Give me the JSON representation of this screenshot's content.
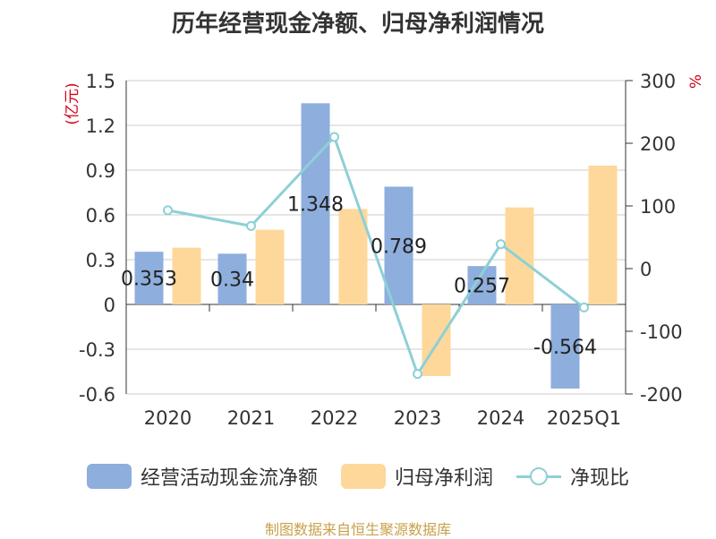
{
  "chart_data": {
    "type": "bar",
    "title": "历年经营现金净额、归母净利润情况",
    "categories": [
      "2020",
      "2021",
      "2022",
      "2023",
      "2024",
      "2025Q1"
    ],
    "series": [
      {
        "name": "经营活动现金流净额",
        "type": "bar",
        "axis": "left",
        "color": "#8eaedd",
        "values": [
          0.353,
          0.34,
          1.348,
          0.789,
          0.257,
          -0.564
        ],
        "labels": [
          "0.353",
          "0.34",
          "1.348",
          "0.789",
          "0.257",
          "-0.564"
        ]
      },
      {
        "name": "归母净利润",
        "type": "bar",
        "axis": "left",
        "color": "#fed89a",
        "values": [
          0.38,
          0.5,
          0.64,
          -0.48,
          0.65,
          0.93
        ]
      },
      {
        "name": "净现比",
        "type": "line",
        "axis": "right",
        "color": "#8dd0d6",
        "values": [
          93,
          68,
          210,
          -168,
          39,
          -62
        ]
      }
    ],
    "left_axis": {
      "label": "(亿元)",
      "ticks": [
        "1.5",
        "1.2",
        "0.9",
        "0.6",
        "0.3",
        "0",
        "-0.3",
        "-0.6"
      ],
      "range": [
        -0.6,
        1.5
      ]
    },
    "right_axis": {
      "label": "%",
      "ticks": [
        "300",
        "200",
        "100",
        "0",
        "-100",
        "-200"
      ],
      "range": [
        -200,
        300
      ]
    },
    "grid": true,
    "legend_position": "bottom"
  },
  "source": "制图数据来自恒生聚源数据库"
}
